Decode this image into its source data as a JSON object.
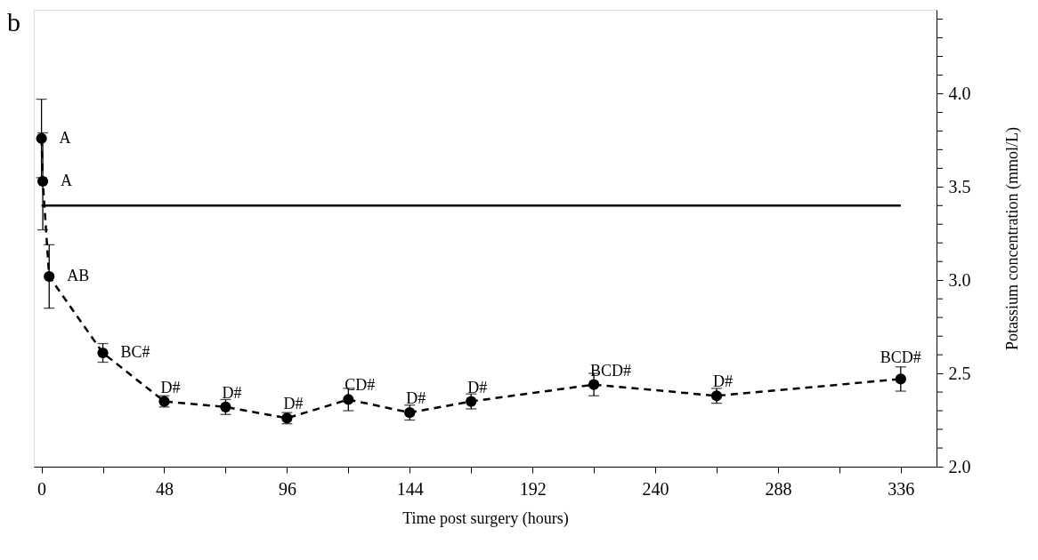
{
  "chart_data": {
    "type": "line",
    "title": "b",
    "xlabel": "Time post surgery (hours)",
    "ylabel": "Potassium concentration (mmol/L)",
    "xlim": [
      -3,
      350
    ],
    "xticks": [
      0,
      {
        "value": 24,
        "label": null
      },
      48,
      {
        "value": 72,
        "label": null
      },
      96,
      {
        "value": 120,
        "label": null
      },
      144,
      {
        "value": 168,
        "label": null
      },
      192,
      {
        "value": 216,
        "label": null
      },
      240,
      {
        "value": 264,
        "label": null
      },
      288,
      {
        "value": 312,
        "label": null
      },
      336
    ],
    "ylim": [
      2.0,
      4.45
    ],
    "yticks": [
      {
        "value": 2,
        "label": "2.0"
      },
      {
        "value": 2.1,
        "label": null
      },
      {
        "value": 2.2,
        "label": null
      },
      {
        "value": 2.3,
        "label": null
      },
      {
        "value": 2.4,
        "label": null
      },
      2.5,
      {
        "value": 2.6,
        "label": null
      },
      {
        "value": 2.7,
        "label": null
      },
      {
        "value": 2.8,
        "label": null
      },
      {
        "value": 2.9,
        "label": null
      },
      {
        "value": 3,
        "label": "3.0"
      },
      {
        "value": 3.1,
        "label": null
      },
      {
        "value": 3.2,
        "label": null
      },
      {
        "value": 3.3,
        "label": null
      },
      {
        "value": 3.4,
        "label": null
      },
      3.5,
      {
        "value": 3.6,
        "label": null
      },
      {
        "value": 3.7,
        "label": null
      },
      {
        "value": 3.8,
        "label": null
      },
      {
        "value": 3.9,
        "label": null
      },
      {
        "value": 4,
        "label": "4.0"
      },
      {
        "value": 4.1,
        "label": null
      },
      {
        "value": 4.2,
        "label": null
      },
      {
        "value": 4.3,
        "label": null
      },
      {
        "value": 4.4,
        "label": null
      }
    ],
    "grid": false,
    "series": [
      {
        "color": "#000000",
        "line_style": "dashed",
        "marker": "circle",
        "x": [
          0,
          0.5,
          3,
          24,
          48,
          72,
          96,
          120,
          144,
          168,
          216,
          264,
          336
        ],
        "values": [
          3.76,
          3.53,
          3.02,
          2.61,
          2.35,
          2.32,
          2.26,
          2.36,
          2.29,
          2.35,
          2.44,
          2.38,
          2.47
        ],
        "errors": [
          0.21,
          0.26,
          0.17,
          0.05,
          0.03,
          0.04,
          0.03,
          0.06,
          0.04,
          0.04,
          0.06,
          0.04,
          0.065
        ]
      },
      {
        "color": "#000000",
        "line_style": "solid",
        "marker": "none",
        "x": [
          0,
          336
        ],
        "values": [
          3.4,
          3.4
        ]
      }
    ],
    "annotations": [
      {
        "text": "A",
        "x": 0,
        "y": 3.76
      },
      {
        "text": "A",
        "x": 0.5,
        "y": 3.53
      },
      {
        "text": "AB",
        "x": 3,
        "y": 3.02
      },
      {
        "text": "BC#",
        "x": 24,
        "y": 2.61
      },
      {
        "text": "D#",
        "x": 48,
        "y": 2.35
      },
      {
        "text": "D#",
        "x": 72,
        "y": 2.32
      },
      {
        "text": "D#",
        "x": 96,
        "y": 2.26
      },
      {
        "text": "CD#",
        "x": 120,
        "y": 2.36
      },
      {
        "text": "D#",
        "x": 144,
        "y": 2.29
      },
      {
        "text": "D#",
        "x": 168,
        "y": 2.35
      },
      {
        "text": "BCD#",
        "x": 216,
        "y": 2.44
      },
      {
        "text": "D#",
        "x": 264,
        "y": 2.38
      },
      {
        "text": "BCD#",
        "x": 336,
        "y": 2.47
      }
    ]
  }
}
